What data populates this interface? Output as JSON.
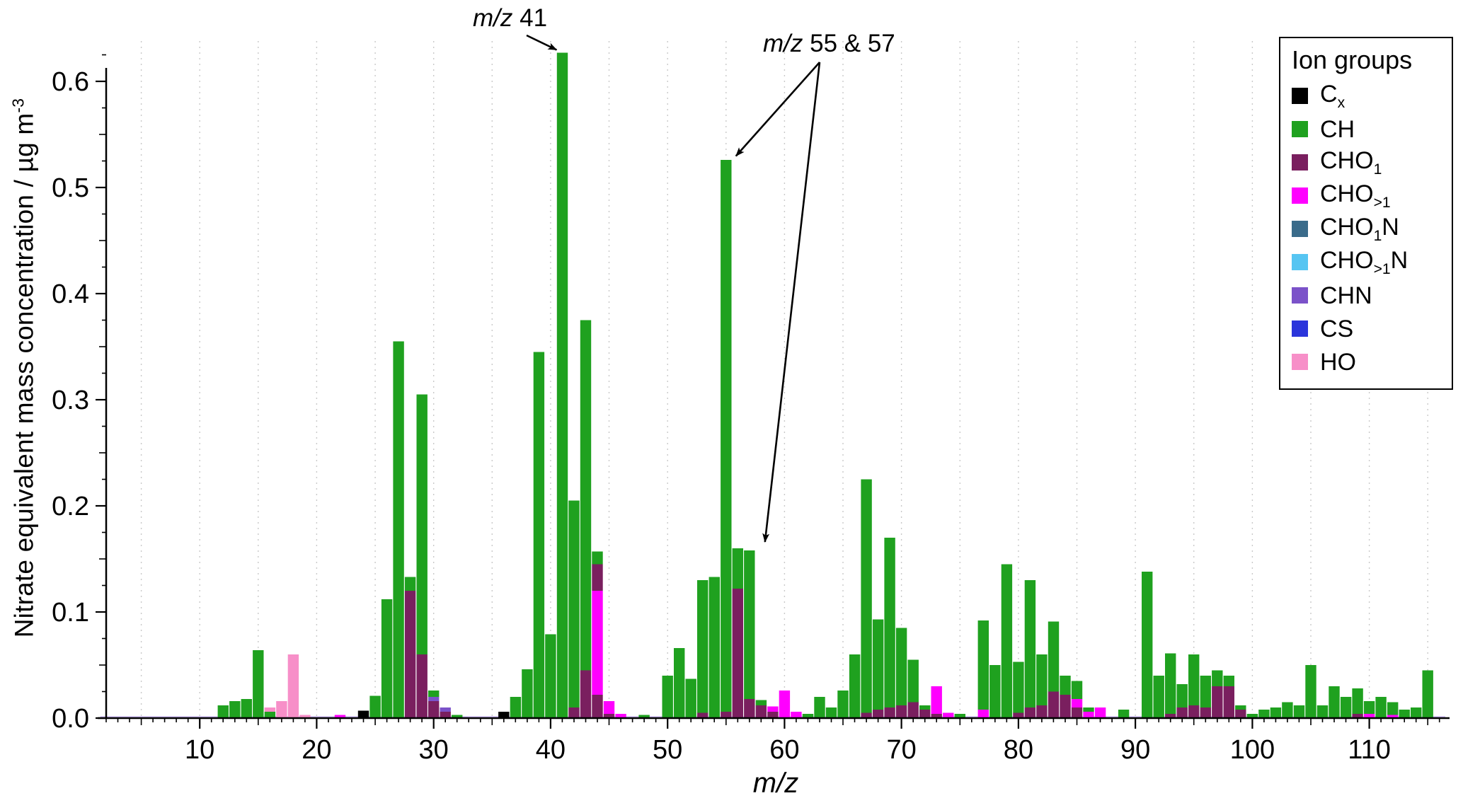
{
  "chart_data": {
    "type": "bar",
    "stacked": true,
    "xlabel": "m/z",
    "ylabel": "Nitrate equivalent mass concentration / µg m-3",
    "ylabel_main": "Nitrate equivalent mass concentration / µg m",
    "ylabel_sup": "-3",
    "xlim": [
      2,
      116.5
    ],
    "ylim": [
      0,
      0.63
    ],
    "x_major_ticks": [
      10,
      20,
      30,
      40,
      50,
      60,
      70,
      80,
      90,
      100,
      110
    ],
    "y_major_ticks": [
      "0.0",
      "0.1",
      "0.2",
      "0.3",
      "0.4",
      "0.5",
      "0.6"
    ],
    "grid_vertical_every": 5,
    "grid_on": true,
    "legend_position": "top-right",
    "baseline_trace_color": "#CBB8F2",
    "groups": {
      "Cx": "#000000",
      "CH": "#1FA11F",
      "CHO1": "#7A1F5F",
      "CHO>1": "#FF00FF",
      "CHO1N": "#3A6B8A",
      "CHO>1N": "#56C5F2",
      "CHN": "#7B52C9",
      "CS": "#2B35DB",
      "HO": "#F78FC8"
    },
    "legend": {
      "title": "Ion groups",
      "entries": [
        {
          "key": "Cx",
          "base": "C",
          "sub": "x",
          "post": ""
        },
        {
          "key": "CH",
          "base": "CH",
          "sub": "",
          "post": ""
        },
        {
          "key": "CHO1",
          "base": "CHO",
          "sub": "1",
          "post": ""
        },
        {
          "key": "CHO>1",
          "base": "CHO",
          "sub": ">1",
          "post": ""
        },
        {
          "key": "CHO1N",
          "base": "CHO",
          "sub": "1",
          "post": "N"
        },
        {
          "key": "CHO>1N",
          "base": "CHO",
          "sub": ">1",
          "post": "N"
        },
        {
          "key": "CHN",
          "base": "CHN",
          "sub": "",
          "post": ""
        },
        {
          "key": "CS",
          "base": "CS",
          "sub": "",
          "post": ""
        },
        {
          "key": "HO",
          "base": "HO",
          "sub": "",
          "post": ""
        }
      ]
    },
    "annotations": [
      {
        "italic": "m/z",
        "rest": " 41",
        "targets": [
          {
            "mz": 41,
            "value": 0.627
          }
        ]
      },
      {
        "italic": "m/z",
        "rest": " 55 & 57",
        "targets": [
          {
            "mz": 55,
            "value": 0.525
          },
          {
            "mz": 57,
            "value": 0.158
          }
        ]
      }
    ],
    "bars": [
      [
        12,
        [
          [
            "CH",
            0.012
          ]
        ]
      ],
      [
        13,
        [
          [
            "CH",
            0.016
          ]
        ]
      ],
      [
        14,
        [
          [
            "CH",
            0.018
          ]
        ]
      ],
      [
        15,
        [
          [
            "CH",
            0.064
          ]
        ]
      ],
      [
        16,
        [
          [
            "CH",
            0.006
          ],
          [
            "HO",
            0.004
          ]
        ]
      ],
      [
        17,
        [
          [
            "HO",
            0.016
          ]
        ]
      ],
      [
        18,
        [
          [
            "HO",
            0.06
          ]
        ]
      ],
      [
        19,
        [
          [
            "HO",
            0.003
          ]
        ]
      ],
      [
        22,
        [
          [
            "CHO>1",
            0.003
          ]
        ]
      ],
      [
        24,
        [
          [
            "Cx",
            0.007
          ]
        ]
      ],
      [
        25,
        [
          [
            "CH",
            0.021
          ]
        ]
      ],
      [
        26,
        [
          [
            "CH",
            0.112
          ]
        ]
      ],
      [
        27,
        [
          [
            "CH",
            0.355
          ]
        ]
      ],
      [
        28,
        [
          [
            "CHO1",
            0.12
          ],
          [
            "CH",
            0.013
          ]
        ]
      ],
      [
        29,
        [
          [
            "CHO1",
            0.06
          ],
          [
            "CH",
            0.245
          ]
        ]
      ],
      [
        30,
        [
          [
            "CHO1",
            0.016
          ],
          [
            "CHN",
            0.004
          ],
          [
            "CH",
            0.006
          ]
        ]
      ],
      [
        31,
        [
          [
            "CHO1",
            0.006
          ],
          [
            "CHN",
            0.004
          ]
        ]
      ],
      [
        32,
        [
          [
            "CH",
            0.003
          ]
        ]
      ],
      [
        36,
        [
          [
            "Cx",
            0.006
          ]
        ]
      ],
      [
        37,
        [
          [
            "CH",
            0.02
          ]
        ]
      ],
      [
        38,
        [
          [
            "CH",
            0.046
          ]
        ]
      ],
      [
        39,
        [
          [
            "CH",
            0.345
          ]
        ]
      ],
      [
        40,
        [
          [
            "CH",
            0.079
          ]
        ]
      ],
      [
        41,
        [
          [
            "CH",
            0.627
          ]
        ]
      ],
      [
        42,
        [
          [
            "CHO1",
            0.01
          ],
          [
            "CH",
            0.195
          ]
        ]
      ],
      [
        43,
        [
          [
            "CHO1",
            0.045
          ],
          [
            "CH",
            0.33
          ]
        ]
      ],
      [
        44,
        [
          [
            "CHO1",
            0.022
          ],
          [
            "CHO>1",
            0.098
          ],
          [
            "CHO1",
            0.025
          ],
          [
            "CH",
            0.012
          ]
        ]
      ],
      [
        45,
        [
          [
            "CHO1",
            0.004
          ],
          [
            "CHO>1",
            0.012
          ]
        ]
      ],
      [
        46,
        [
          [
            "CHO>1",
            0.004
          ]
        ]
      ],
      [
        48,
        [
          [
            "CH",
            0.003
          ]
        ]
      ],
      [
        50,
        [
          [
            "CH",
            0.04
          ]
        ]
      ],
      [
        51,
        [
          [
            "CH",
            0.066
          ]
        ]
      ],
      [
        52,
        [
          [
            "CH",
            0.037
          ]
        ]
      ],
      [
        53,
        [
          [
            "CHO1",
            0.005
          ],
          [
            "CH",
            0.125
          ]
        ]
      ],
      [
        54,
        [
          [
            "CH",
            0.133
          ]
        ]
      ],
      [
        55,
        [
          [
            "CHO1",
            0.006
          ],
          [
            "CH",
            0.52
          ]
        ]
      ],
      [
        56,
        [
          [
            "CHO1",
            0.122
          ],
          [
            "CH",
            0.038
          ]
        ]
      ],
      [
        57,
        [
          [
            "CHO1",
            0.018
          ],
          [
            "CH",
            0.14
          ]
        ]
      ],
      [
        58,
        [
          [
            "CHO1",
            0.012
          ],
          [
            "CH",
            0.005
          ]
        ]
      ],
      [
        59,
        [
          [
            "CHO1",
            0.006
          ],
          [
            "CHO>1",
            0.005
          ]
        ]
      ],
      [
        60,
        [
          [
            "CHO>1",
            0.026
          ]
        ]
      ],
      [
        61,
        [
          [
            "CHO>1",
            0.006
          ]
        ]
      ],
      [
        62,
        [
          [
            "CH",
            0.004
          ]
        ]
      ],
      [
        63,
        [
          [
            "CH",
            0.02
          ]
        ]
      ],
      [
        64,
        [
          [
            "CH",
            0.01
          ]
        ]
      ],
      [
        65,
        [
          [
            "CH",
            0.026
          ]
        ]
      ],
      [
        66,
        [
          [
            "CH",
            0.06
          ]
        ]
      ],
      [
        67,
        [
          [
            "CHO1",
            0.005
          ],
          [
            "CH",
            0.22
          ]
        ]
      ],
      [
        68,
        [
          [
            "CHO1",
            0.008
          ],
          [
            "CH",
            0.085
          ]
        ]
      ],
      [
        69,
        [
          [
            "CHO1",
            0.01
          ],
          [
            "CH",
            0.16
          ]
        ]
      ],
      [
        70,
        [
          [
            "CHO1",
            0.012
          ],
          [
            "CH",
            0.073
          ]
        ]
      ],
      [
        71,
        [
          [
            "CHO1",
            0.015
          ],
          [
            "CH",
            0.04
          ]
        ]
      ],
      [
        72,
        [
          [
            "CHO1",
            0.008
          ],
          [
            "CH",
            0.004
          ]
        ]
      ],
      [
        73,
        [
          [
            "CHO1",
            0.004
          ],
          [
            "CHO>1",
            0.026
          ]
        ]
      ],
      [
        74,
        [
          [
            "CHO>1",
            0.005
          ]
        ]
      ],
      [
        75,
        [
          [
            "CH",
            0.004
          ]
        ]
      ],
      [
        77,
        [
          [
            "CHO>1",
            0.008
          ],
          [
            "CH",
            0.084
          ]
        ]
      ],
      [
        78,
        [
          [
            "CH",
            0.05
          ]
        ]
      ],
      [
        79,
        [
          [
            "CH",
            0.145
          ]
        ]
      ],
      [
        80,
        [
          [
            "CHO1",
            0.005
          ],
          [
            "CH",
            0.048
          ]
        ]
      ],
      [
        81,
        [
          [
            "CHO1",
            0.01
          ],
          [
            "CH",
            0.12
          ]
        ]
      ],
      [
        82,
        [
          [
            "CHO1",
            0.012
          ],
          [
            "CH",
            0.048
          ]
        ]
      ],
      [
        83,
        [
          [
            "CHO1",
            0.025
          ],
          [
            "CH",
            0.066
          ]
        ]
      ],
      [
        84,
        [
          [
            "CHO1",
            0.022
          ],
          [
            "CH",
            0.018
          ]
        ]
      ],
      [
        85,
        [
          [
            "CHO1",
            0.01
          ],
          [
            "CHO>1",
            0.008
          ],
          [
            "CH",
            0.017
          ]
        ]
      ],
      [
        86,
        [
          [
            "CHO>1",
            0.006
          ],
          [
            "CH",
            0.004
          ]
        ]
      ],
      [
        87,
        [
          [
            "CHO>1",
            0.01
          ]
        ]
      ],
      [
        89,
        [
          [
            "CH",
            0.008
          ]
        ]
      ],
      [
        91,
        [
          [
            "CH",
            0.138
          ]
        ]
      ],
      [
        92,
        [
          [
            "CH",
            0.04
          ]
        ]
      ],
      [
        93,
        [
          [
            "CHO1",
            0.004
          ],
          [
            "CH",
            0.057
          ]
        ]
      ],
      [
        94,
        [
          [
            "CHO1",
            0.01
          ],
          [
            "CH",
            0.022
          ]
        ]
      ],
      [
        95,
        [
          [
            "CHO1",
            0.012
          ],
          [
            "CH",
            0.048
          ]
        ]
      ],
      [
        96,
        [
          [
            "CHO1",
            0.01
          ],
          [
            "CH",
            0.03
          ]
        ]
      ],
      [
        97,
        [
          [
            "CHO1",
            0.03
          ],
          [
            "CH",
            0.015
          ]
        ]
      ],
      [
        98,
        [
          [
            "CHO1",
            0.03
          ],
          [
            "CH",
            0.01
          ]
        ]
      ],
      [
        99,
        [
          [
            "CHO1",
            0.008
          ],
          [
            "CH",
            0.004
          ]
        ]
      ],
      [
        100,
        [
          [
            "CH",
            0.004
          ]
        ]
      ],
      [
        101,
        [
          [
            "CH",
            0.008
          ]
        ]
      ],
      [
        102,
        [
          [
            "CH",
            0.01
          ]
        ]
      ],
      [
        103,
        [
          [
            "CH",
            0.015
          ]
        ]
      ],
      [
        104,
        [
          [
            "CH",
            0.012
          ]
        ]
      ],
      [
        105,
        [
          [
            "CH",
            0.05
          ]
        ]
      ],
      [
        106,
        [
          [
            "CH",
            0.012
          ]
        ]
      ],
      [
        107,
        [
          [
            "CH",
            0.03
          ]
        ]
      ],
      [
        108,
        [
          [
            "CH",
            0.02
          ]
        ]
      ],
      [
        109,
        [
          [
            "CHO1",
            0.004
          ],
          [
            "CH",
            0.024
          ]
        ]
      ],
      [
        110,
        [
          [
            "CHO>1",
            0.004
          ],
          [
            "CH",
            0.012
          ]
        ]
      ],
      [
        111,
        [
          [
            "CH",
            0.02
          ]
        ]
      ],
      [
        112,
        [
          [
            "CHO>1",
            0.003
          ],
          [
            "CH",
            0.012
          ]
        ]
      ],
      [
        113,
        [
          [
            "CH",
            0.008
          ]
        ]
      ],
      [
        114,
        [
          [
            "CH",
            0.01
          ]
        ]
      ],
      [
        115,
        [
          [
            "CH",
            0.045
          ]
        ]
      ]
    ]
  }
}
